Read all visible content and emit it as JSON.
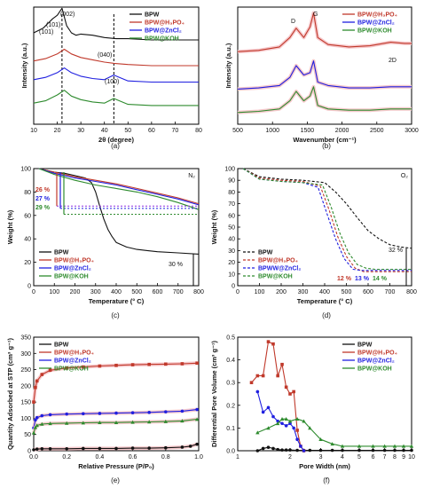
{
  "colors": {
    "BPW": "#111111",
    "BPW@H3PO4": "#c0392b",
    "BPW@ZnCl2": "#1f1fe0",
    "BPW@KOH": "#2e8b2e",
    "halo": "#f6c9cc",
    "arrow_purple": "#8a2be2",
    "arrow_orange": "#e67e22"
  },
  "panel_labels": [
    "(a)",
    "(b)",
    "(c)",
    "(d)",
    "(e)",
    "(f)"
  ],
  "chart_data": [
    {
      "panel": "(a)",
      "type": "line",
      "xlabel": "2θ (degree)",
      "ylabel": "Intensity (a.u.)",
      "xlim": [
        10,
        80
      ],
      "xticks": [
        "10",
        "20",
        "30",
        "40",
        "50",
        "60",
        "70",
        "80"
      ],
      "legend": [
        "BPW",
        "BPW@H₃PO₄",
        "BPW@ZnCl₂",
        "BPW@KOH"
      ],
      "legend_position": "top-right",
      "annotations": [
        "(101)",
        "(101)",
        "(002)",
        "(040)",
        "(100)"
      ],
      "dashed_lines_x": [
        22,
        44
      ],
      "series": [
        {
          "name": "BPW",
          "x": [
            10,
            14,
            16,
            18,
            20,
            22,
            24,
            26,
            28,
            30,
            35,
            40,
            45,
            50,
            60,
            70,
            80
          ],
          "y": [
            0.78,
            0.82,
            0.86,
            0.9,
            0.93,
            0.99,
            0.84,
            0.78,
            0.76,
            0.77,
            0.76,
            0.74,
            0.73,
            0.73,
            0.72,
            0.72,
            0.72
          ]
        },
        {
          "name": "BPW@H₃PO₄",
          "x": [
            10,
            15,
            20,
            23,
            26,
            30,
            35,
            40,
            44,
            50,
            60,
            70,
            80
          ],
          "y": [
            0.54,
            0.56,
            0.6,
            0.64,
            0.6,
            0.57,
            0.55,
            0.53,
            0.52,
            0.51,
            0.5,
            0.5,
            0.5
          ]
        },
        {
          "name": "BPW@ZnCl₂",
          "x": [
            10,
            15,
            20,
            23,
            26,
            30,
            35,
            40,
            44,
            50,
            60,
            70,
            80
          ],
          "y": [
            0.38,
            0.4,
            0.44,
            0.48,
            0.44,
            0.41,
            0.39,
            0.38,
            0.42,
            0.37,
            0.36,
            0.36,
            0.36
          ]
        },
        {
          "name": "BPW@KOH",
          "x": [
            10,
            15,
            20,
            23,
            26,
            30,
            35,
            40,
            44,
            50,
            60,
            70,
            80
          ],
          "y": [
            0.18,
            0.2,
            0.25,
            0.29,
            0.24,
            0.21,
            0.19,
            0.18,
            0.22,
            0.17,
            0.16,
            0.16,
            0.16
          ]
        }
      ]
    },
    {
      "panel": "(b)",
      "type": "line",
      "xlabel": "Wavenumber (cm⁻¹)",
      "ylabel": "Intensity (a.u.)",
      "xlim": [
        500,
        3000
      ],
      "xticks": [
        "500",
        "1000",
        "1500",
        "2000",
        "2500",
        "3000"
      ],
      "legend": [
        "BPW@H₃PO₄",
        "BPW@ZnCl₂",
        "BPW@KOH"
      ],
      "legend_position": "top-right",
      "annotations": [
        "D",
        "G",
        "2D"
      ],
      "series": [
        {
          "name": "BPW@H₃PO₄",
          "x": [
            500,
            800,
            1100,
            1250,
            1340,
            1450,
            1540,
            1590,
            1650,
            1800,
            2100,
            2400,
            2700,
            2900,
            3000
          ],
          "y": [
            0.62,
            0.63,
            0.66,
            0.74,
            0.82,
            0.74,
            0.83,
            0.95,
            0.74,
            0.68,
            0.66,
            0.67,
            0.7,
            0.69,
            0.69
          ]
        },
        {
          "name": "BPW@ZnCl₂",
          "x": [
            500,
            800,
            1100,
            1250,
            1340,
            1450,
            1540,
            1590,
            1650,
            1800,
            2100,
            2400,
            2700,
            2900,
            3000
          ],
          "y": [
            0.3,
            0.31,
            0.33,
            0.4,
            0.5,
            0.42,
            0.44,
            0.54,
            0.36,
            0.33,
            0.31,
            0.31,
            0.32,
            0.32,
            0.32
          ]
        },
        {
          "name": "BPW@KOH",
          "x": [
            500,
            800,
            1100,
            1250,
            1340,
            1450,
            1540,
            1590,
            1650,
            1800,
            2100,
            2400,
            2700,
            2900,
            3000
          ],
          "y": [
            0.1,
            0.11,
            0.13,
            0.2,
            0.28,
            0.2,
            0.24,
            0.32,
            0.16,
            0.13,
            0.12,
            0.12,
            0.13,
            0.13,
            0.13
          ]
        }
      ]
    },
    {
      "panel": "(c)",
      "type": "line",
      "xlabel": "Temperature (° C)",
      "ylabel": "Weight (%)",
      "xlim": [
        0,
        800
      ],
      "ylim": [
        0,
        100
      ],
      "xticks": [
        "0",
        "100",
        "200",
        "300",
        "400",
        "500",
        "600",
        "700",
        "800"
      ],
      "yticks": [
        "0",
        "20",
        "40",
        "60",
        "80",
        "100"
      ],
      "legend": [
        "BPW",
        "BPW@H₃PO₄",
        "BPW@ZnCl₂",
        "BPW@KOH"
      ],
      "legend_position": "bottom-left",
      "atmosphere": "N₂",
      "annotations": [
        "26 %",
        "27 %",
        "29 %",
        "30 %"
      ],
      "series": [
        {
          "name": "BPW",
          "x": [
            25,
            100,
            150,
            200,
            250,
            280,
            300,
            320,
            340,
            360,
            380,
            400,
            450,
            500,
            550,
            600,
            700,
            800
          ],
          "y": [
            100,
            97,
            96,
            94,
            92,
            88,
            80,
            68,
            57,
            48,
            42,
            37,
            33,
            31,
            30,
            29,
            28,
            27
          ]
        },
        {
          "name": "BPW@H₃PO₄",
          "x": [
            25,
            100,
            200,
            300,
            400,
            500,
            600,
            700,
            800
          ],
          "y": [
            100,
            97,
            93,
            90,
            87,
            83,
            79,
            75,
            70
          ]
        },
        {
          "name": "BPW@ZnCl₂",
          "x": [
            25,
            100,
            200,
            300,
            400,
            500,
            600,
            700,
            800
          ],
          "y": [
            100,
            96,
            92,
            89,
            86,
            82,
            78,
            74,
            69
          ]
        },
        {
          "name": "BPW@KOH",
          "x": [
            25,
            100,
            200,
            300,
            400,
            500,
            600,
            700,
            800
          ],
          "y": [
            100,
            95,
            90,
            86,
            83,
            80,
            76,
            71,
            65
          ]
        }
      ]
    },
    {
      "panel": "(d)",
      "type": "line",
      "xlabel": "Temperature (° C)",
      "ylabel": "Weight (%)",
      "xlim": [
        0,
        800
      ],
      "ylim": [
        0,
        100
      ],
      "xticks": [
        "0",
        "100",
        "200",
        "300",
        "400",
        "500",
        "600",
        "700",
        "800"
      ],
      "yticks": [
        "0",
        "10",
        "20",
        "30",
        "40",
        "50",
        "60",
        "70",
        "80",
        "90",
        "100"
      ],
      "legend": [
        "BPW",
        "BPW@H₃PO₄",
        "BPWW@ZnCl₂",
        "BPW@KOH"
      ],
      "legend_position": "bottom-left",
      "atmosphere": "O₂",
      "annotations": [
        "12 %",
        "13 %",
        "14 %",
        "32 %"
      ],
      "series": [
        {
          "name": "BPW",
          "x": [
            25,
            100,
            200,
            300,
            400,
            450,
            500,
            550,
            600,
            650,
            700,
            750,
            800
          ],
          "y": [
            100,
            93,
            91,
            90,
            88,
            80,
            70,
            58,
            47,
            40,
            35,
            33,
            32
          ]
        },
        {
          "name": "BPW@H₃PO₄",
          "x": [
            25,
            100,
            200,
            300,
            380,
            420,
            460,
            500,
            540,
            580,
            620,
            700,
            800
          ],
          "y": [
            100,
            92,
            90,
            89,
            85,
            65,
            42,
            25,
            15,
            12,
            12,
            12,
            12
          ]
        },
        {
          "name": "BPWW@ZnCl₂",
          "x": [
            25,
            100,
            200,
            300,
            370,
            410,
            450,
            490,
            530,
            570,
            610,
            700,
            800
          ],
          "y": [
            100,
            91,
            89,
            88,
            84,
            62,
            40,
            23,
            14,
            13,
            13,
            13,
            13
          ]
        },
        {
          "name": "BPW@KOH",
          "x": [
            25,
            100,
            200,
            300,
            390,
            430,
            470,
            510,
            550,
            590,
            630,
            700,
            800
          ],
          "y": [
            100,
            91,
            89,
            88,
            86,
            67,
            45,
            28,
            18,
            15,
            14,
            14,
            14
          ]
        }
      ]
    },
    {
      "panel": "(e)",
      "type": "line",
      "xlabel": "Relative Pressure (P/P₀)",
      "ylabel": "Quantity Adsorbed at STP (cm³ g⁻¹)",
      "xlim": [
        0,
        1
      ],
      "ylim": [
        0,
        350
      ],
      "xticks": [
        "0.0",
        "0.2",
        "0.4",
        "0.6",
        "0.8",
        "1.0"
      ],
      "yticks": [
        "0",
        "50",
        "100",
        "150",
        "200",
        "250",
        "300",
        "350"
      ],
      "legend": [
        "BPW",
        "BPW@H₃PO₄",
        "BPW@ZnCl₂",
        "BPW@KOH"
      ],
      "legend_position": "top-left",
      "series": [
        {
          "name": "BPW",
          "x": [
            0.0,
            0.02,
            0.05,
            0.1,
            0.2,
            0.3,
            0.4,
            0.5,
            0.6,
            0.7,
            0.8,
            0.9,
            0.95,
            0.99
          ],
          "y": [
            3,
            5,
            6,
            6,
            6,
            7,
            7,
            7,
            8,
            8,
            9,
            11,
            14,
            20
          ]
        },
        {
          "name": "BPW@H₃PO₄",
          "x": [
            0.0,
            0.01,
            0.02,
            0.05,
            0.1,
            0.2,
            0.3,
            0.4,
            0.5,
            0.6,
            0.7,
            0.8,
            0.9,
            0.99
          ],
          "y": [
            150,
            195,
            215,
            235,
            248,
            255,
            258,
            261,
            263,
            265,
            266,
            267,
            268,
            270
          ]
        },
        {
          "name": "BPW@ZnCl₂",
          "x": [
            0.0,
            0.01,
            0.02,
            0.05,
            0.1,
            0.2,
            0.3,
            0.4,
            0.5,
            0.6,
            0.7,
            0.8,
            0.9,
            0.99
          ],
          "y": [
            70,
            95,
            102,
            108,
            111,
            113,
            114,
            115,
            116,
            117,
            118,
            120,
            122,
            127
          ]
        },
        {
          "name": "BPW@KOH",
          "x": [
            0.0,
            0.01,
            0.02,
            0.05,
            0.1,
            0.2,
            0.3,
            0.4,
            0.5,
            0.6,
            0.7,
            0.8,
            0.9,
            0.99
          ],
          "y": [
            55,
            72,
            78,
            82,
            84,
            85,
            86,
            87,
            87,
            88,
            89,
            90,
            92,
            97
          ]
        }
      ]
    },
    {
      "panel": "(f)",
      "type": "line",
      "xlabel": "Pore Width (nm)",
      "ylabel": "Differential Pore Volume (cm³ g⁻¹)",
      "xlim": [
        1,
        10
      ],
      "xscale": "log",
      "ylim": [
        0,
        0.5
      ],
      "xticks": [
        "1",
        "2",
        "3",
        "4",
        "5",
        "6",
        "7",
        "8",
        "9",
        "10"
      ],
      "yticks": [
        "0.0",
        "0.1",
        "0.2",
        "0.3",
        "0.4",
        "0.5"
      ],
      "legend": [
        "BPW",
        "BPW@H₃PO₄",
        "BPW@ZnCl₂",
        "BPW@KOH"
      ],
      "legend_position": "top-right",
      "series": [
        {
          "name": "BPW",
          "x": [
            1.3,
            1.4,
            1.5,
            1.6,
            1.7,
            1.8,
            1.9,
            2.0,
            2.2,
            2.4,
            2.6,
            3.0,
            3.5,
            4,
            5,
            6,
            7,
            8,
            9,
            10
          ],
          "y": [
            0.0,
            0.01,
            0.015,
            0.01,
            0.005,
            0.003,
            0.003,
            0.003,
            0.002,
            0.002,
            0.002,
            0.002,
            0.002,
            0.002,
            0.002,
            0.002,
            0.002,
            0.002,
            0.002,
            0.002
          ]
        },
        {
          "name": "BPW@H₃PO₄",
          "x": [
            1.2,
            1.3,
            1.4,
            1.5,
            1.6,
            1.7,
            1.8,
            1.9,
            2.0,
            2.1,
            2.2,
            2.3,
            2.4
          ],
          "y": [
            0.3,
            0.33,
            0.33,
            0.48,
            0.47,
            0.33,
            0.38,
            0.28,
            0.25,
            0.26,
            0.09,
            0.02,
            0.0
          ]
        },
        {
          "name": "BPW@ZnCl₂",
          "x": [
            1.3,
            1.4,
            1.5,
            1.6,
            1.7,
            1.8,
            1.9,
            2.0,
            2.1,
            2.2,
            2.3,
            2.4
          ],
          "y": [
            0.26,
            0.17,
            0.19,
            0.15,
            0.13,
            0.12,
            0.11,
            0.12,
            0.1,
            0.05,
            0.02,
            0.0
          ]
        },
        {
          "name": "BPW@KOH",
          "x": [
            1.3,
            1.5,
            1.7,
            1.8,
            1.9,
            2.0,
            2.2,
            2.4,
            2.6,
            3.0,
            3.5,
            4,
            5,
            6,
            7,
            8,
            9,
            10
          ],
          "y": [
            0.08,
            0.1,
            0.12,
            0.14,
            0.14,
            0.13,
            0.14,
            0.13,
            0.1,
            0.05,
            0.03,
            0.02,
            0.02,
            0.02,
            0.02,
            0.02,
            0.02,
            0.02
          ]
        }
      ]
    }
  ]
}
